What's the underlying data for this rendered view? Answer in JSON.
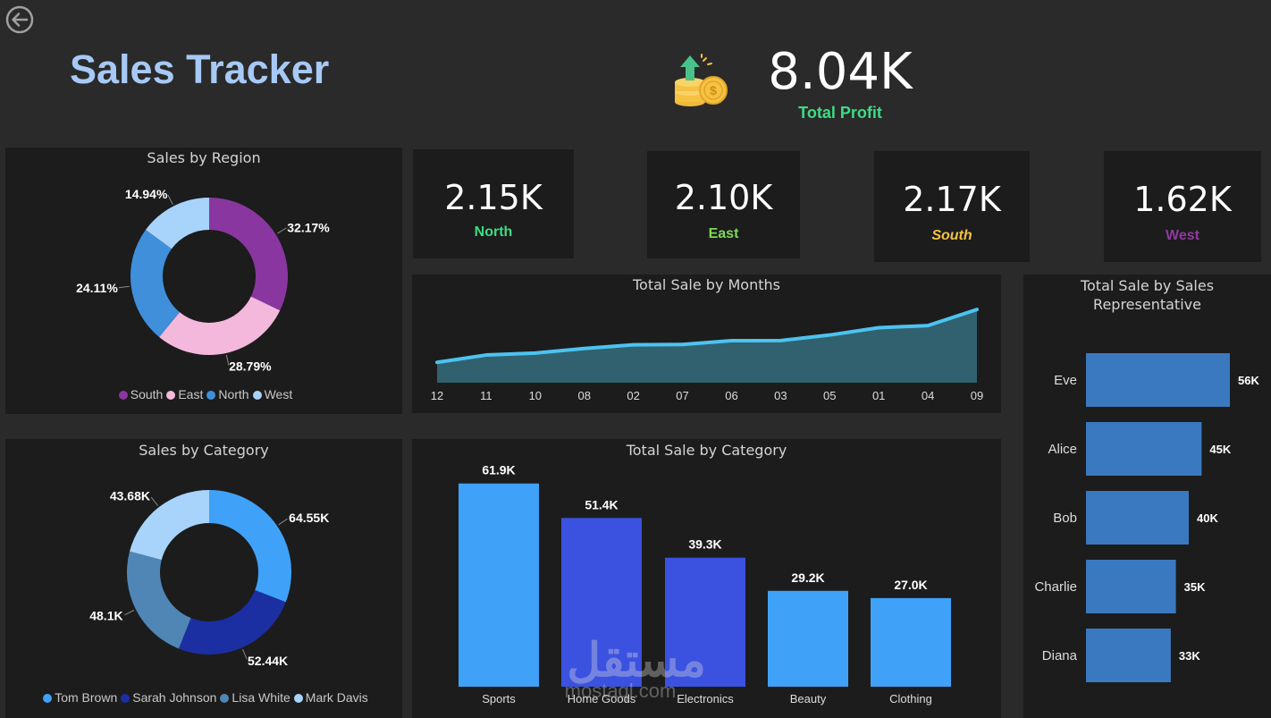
{
  "header": {
    "title": "Sales Tracker",
    "profit_value": "8.04K",
    "profit_label": "Total Profit",
    "back_icon": "back-arrow-icon",
    "profit_icon": "coins-growth-icon"
  },
  "kpis": [
    {
      "value": "2.15K",
      "label": "North",
      "color": "#3ddc84"
    },
    {
      "value": "2.10K",
      "label": "East",
      "color": "#7ed957"
    },
    {
      "value": "2.17K",
      "label": "South",
      "color": "#f5c242"
    },
    {
      "value": "1.62K",
      "label": "West",
      "color": "#8e3a9d"
    }
  ],
  "colors": {
    "background": "#2a2a2a",
    "panel": "#1c1c1c",
    "title_blue": "#a7c9f5",
    "line": "#4cc3f0",
    "area": "#31616f",
    "rep_bar": "#3a79c0"
  },
  "charts": {
    "region": {
      "title": "Sales by Region"
    },
    "category_donut": {
      "title": "Sales by Category"
    },
    "months": {
      "title": "Total Sale by Months"
    },
    "category_bar": {
      "title": "Total Sale by Category"
    },
    "reps": {
      "title": "Total Sale by Sales Representative"
    }
  },
  "watermark": {
    "arabic": "مستقل",
    "latin": "mostaql.com"
  },
  "chart_data": [
    {
      "id": "region",
      "type": "pie",
      "title": "Sales by Region",
      "categories": [
        "South",
        "East",
        "North",
        "West"
      ],
      "values": [
        32.17,
        28.79,
        24.11,
        14.94
      ],
      "labels": [
        "32.17%",
        "28.79%",
        "24.11%",
        "14.94%"
      ],
      "colors": [
        "#8a36a0",
        "#f4b8dd",
        "#3f8fdb",
        "#a8d3fb"
      ],
      "legend": "bottom"
    },
    {
      "id": "category_donut",
      "type": "pie",
      "title": "Sales by Category",
      "categories": [
        "Tom Brown",
        "Sarah Johnson",
        "Lisa White",
        "Mark Davis"
      ],
      "values": [
        64.55,
        52.44,
        48.1,
        43.68
      ],
      "labels": [
        "64.55K",
        "52.44K",
        "48.1K",
        "43.68K"
      ],
      "colors": [
        "#3fa2f8",
        "#1b2fa3",
        "#4f86b5",
        "#a8d3fb"
      ],
      "legend": "bottom"
    },
    {
      "id": "months",
      "type": "area",
      "title": "Total Sale by Months",
      "categories": [
        "12",
        "11",
        "10",
        "08",
        "02",
        "07",
        "06",
        "03",
        "05",
        "01",
        "04",
        "09"
      ],
      "values": [
        12.5,
        17,
        18.2,
        21,
        23.3,
        23.5,
        25.8,
        25.9,
        29.3,
        33.8,
        35.1,
        45
      ],
      "ylim": [
        0,
        50
      ],
      "grid": false
    },
    {
      "id": "category_bar",
      "type": "bar",
      "title": "Total Sale by Category",
      "categories": [
        "Sports",
        "Home Goods",
        "Electronics",
        "Beauty",
        "Clothing"
      ],
      "values": [
        61.9,
        51.4,
        39.3,
        29.2,
        27.0
      ],
      "labels": [
        "61.9K",
        "51.4K",
        "39.3K",
        "29.2K",
        "27.0K"
      ],
      "colors": [
        "#3fa2f8",
        "#3b51e0",
        "#3b51e0",
        "#3fa2f8",
        "#3fa2f8"
      ],
      "ylim": [
        0,
        70
      ]
    },
    {
      "id": "reps",
      "type": "bar",
      "orientation": "horizontal",
      "title": "Total Sale by Sales Representative",
      "categories": [
        "Eve",
        "Alice",
        "Bob",
        "Charlie",
        "Diana"
      ],
      "values": [
        56,
        45,
        40,
        35,
        33
      ],
      "labels": [
        "56K",
        "45K",
        "40K",
        "35K",
        "33K"
      ]
    }
  ]
}
